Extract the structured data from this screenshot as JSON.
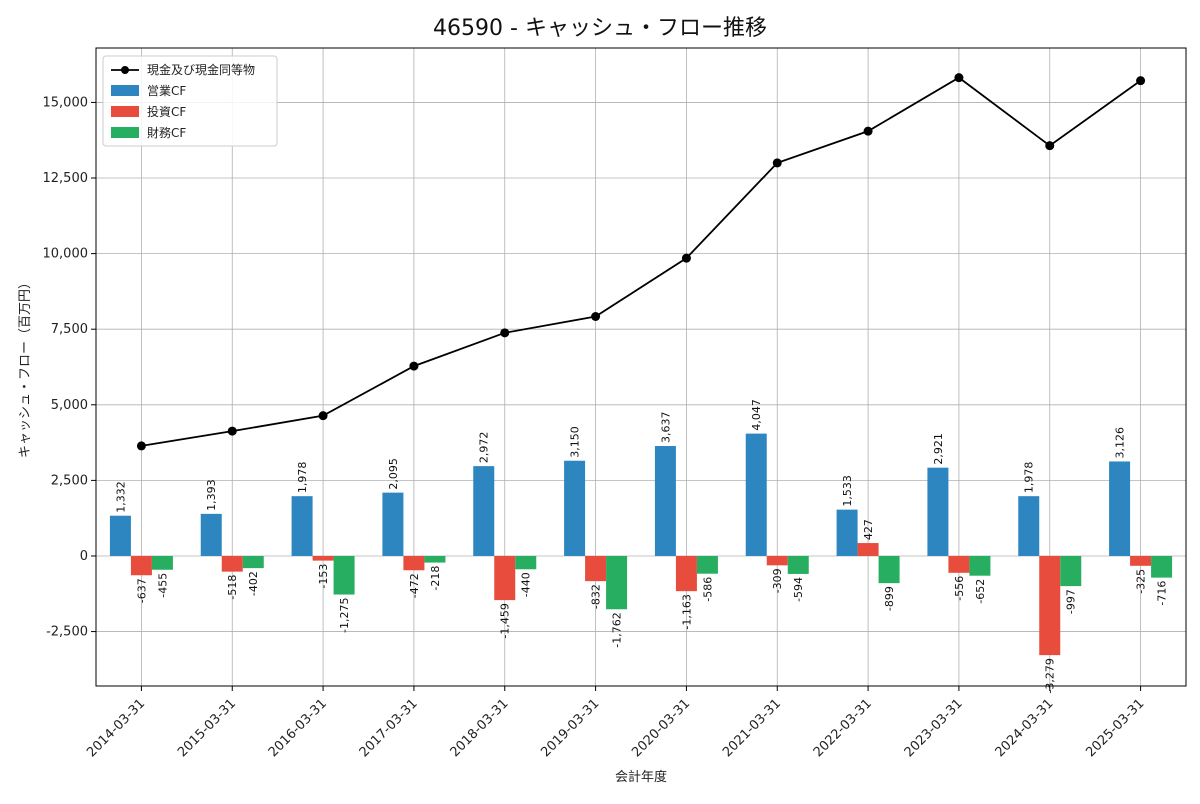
{
  "chart_data": {
    "type": "bar",
    "title": "46590 - キャッシュ・フロー推移",
    "xlabel": "会計年度",
    "ylabel": "キャッシュ・フロー（百万円）",
    "ylim": [
      -4300,
      16800
    ],
    "yticks": [
      -2500,
      0,
      2500,
      5000,
      7500,
      10000,
      12500,
      15000
    ],
    "ytick_labels": [
      "-2,500",
      "0",
      "2,500",
      "5,000",
      "7,500",
      "10,000",
      "12,500",
      "15,000"
    ],
    "grid": true,
    "legend_position": "top-left",
    "categories": [
      "2014-03-31",
      "2015-03-31",
      "2016-03-31",
      "2017-03-31",
      "2018-03-31",
      "2019-03-31",
      "2020-03-31",
      "2021-03-31",
      "2022-03-31",
      "2023-03-31",
      "2024-03-31",
      "2025-03-31"
    ],
    "series": [
      {
        "name": "営業CF",
        "kind": "bar",
        "color": "#2e86c1",
        "values": [
          1332,
          1393,
          1978,
          2095,
          2972,
          3150,
          3637,
          4047,
          1533,
          2921,
          1978,
          3126
        ],
        "labels": [
          "1,332",
          "1,393",
          "1,978",
          "2,095",
          "2,972",
          "3,150",
          "3,637",
          "4,047",
          "1,533",
          "2,921",
          "1,978",
          "3,126"
        ]
      },
      {
        "name": "投資CF",
        "kind": "bar",
        "color": "#e74c3c",
        "values": [
          -637,
          -518,
          -153,
          -472,
          -1459,
          -832,
          -1163,
          -309,
          427,
          -556,
          -3279,
          -325
        ],
        "labels": [
          "-637",
          "-518",
          "-153",
          "-472",
          "-1,459",
          "-832",
          "-1,163",
          "-309",
          "427",
          "-556",
          "-3,279",
          "-325"
        ]
      },
      {
        "name": "財務CF",
        "kind": "bar",
        "color": "#27ae60",
        "values": [
          -455,
          -402,
          -1275,
          -218,
          -440,
          -1762,
          -586,
          -594,
          -899,
          -652,
          -997,
          -716
        ],
        "labels": [
          "-455",
          "-402",
          "-1,275",
          "-218",
          "-440",
          "-1,762",
          "-586",
          "-594",
          "-899",
          "-652",
          "-997",
          "-716"
        ]
      },
      {
        "name": "現金及び現金同等物",
        "kind": "line",
        "color": "#000000",
        "values": [
          3640,
          4130,
          4640,
          6280,
          7380,
          7920,
          9850,
          13000,
          14050,
          15820,
          13570,
          15720
        ]
      }
    ]
  }
}
